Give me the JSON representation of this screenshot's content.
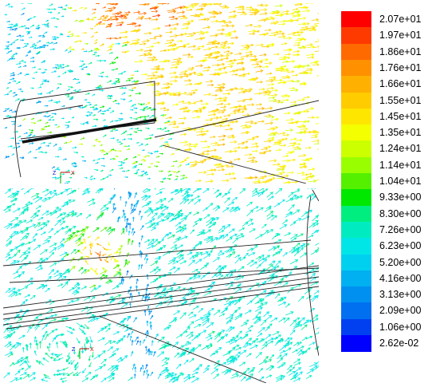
{
  "colorbar": {
    "labels": [
      "2.07e+01",
      "1.97e+01",
      "1.86e+01",
      "1.76e+01",
      "1.66e+01",
      "1.55e+01",
      "1.45e+01",
      "1.35e+01",
      "1.24e+01",
      "1.14e+01",
      "1.04e+01",
      "9.33e+00",
      "8.30e+00",
      "7.26e+00",
      "6.23e+00",
      "5.20e+00",
      "4.16e+00",
      "3.13e+00",
      "2.09e+00",
      "1.06e+00",
      "2.62e-02"
    ],
    "colors": [
      "#ff0000",
      "#ff3a00",
      "#ff6a00",
      "#ff9000",
      "#ffb000",
      "#ffcc00",
      "#ffe600",
      "#f4ff00",
      "#ccff00",
      "#99ff00",
      "#55f000",
      "#00e800",
      "#00ee80",
      "#00ecc0",
      "#00e6e6",
      "#00d0f0",
      "#00b0f0",
      "#0090f0",
      "#0070f0",
      "#0040f0",
      "#0000ff"
    ]
  },
  "views": {
    "top_axis": {
      "z": "Z",
      "x": "X"
    },
    "bottom_axis": {
      "z": "Z",
      "x": "X"
    }
  }
}
